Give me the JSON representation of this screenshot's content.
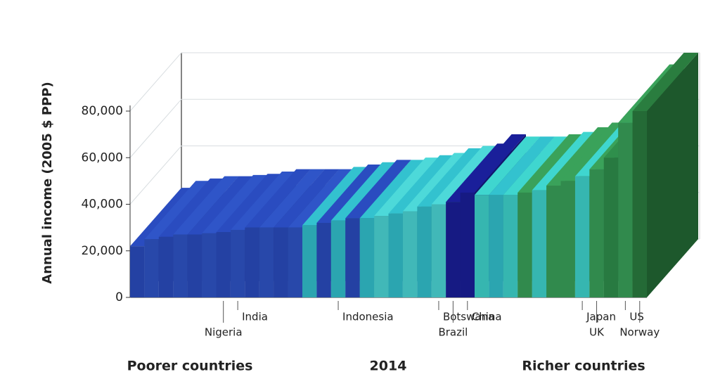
{
  "chart_data": {
    "type": "bar3d",
    "y_label": "Annual income (2005 $ PPP)",
    "categories": [
      null,
      null,
      null,
      null,
      null,
      null,
      "Nigeria",
      "India",
      null,
      null,
      null,
      null,
      null,
      null,
      "Indonesia",
      null,
      null,
      null,
      null,
      null,
      null,
      "Botswana",
      "Brazil",
      "China",
      null,
      null,
      null,
      null,
      null,
      null,
      null,
      "Japan",
      "UK",
      null,
      "US",
      "Norway"
    ],
    "values": [
      22000,
      25000,
      26000,
      27000,
      27000,
      27500,
      28000,
      29000,
      30000,
      30000,
      30000,
      30000,
      31000,
      32000,
      33000,
      34000,
      34000,
      35000,
      36000,
      37000,
      39000,
      40000,
      41000,
      45000,
      44000,
      44000,
      44000,
      45000,
      46000,
      48000,
      50000,
      52000,
      55000,
      60000,
      75000,
      80000
    ],
    "colors": [
      "#2a4cc0",
      "#2f55c8",
      "#2a4cc0",
      "#2f55c8",
      "#2a4cc0",
      "#2f55c8",
      "#2a4cc0",
      "#2f55c8",
      "#2a4cc0",
      "#2f55c8",
      "#2a4cc0",
      "#2f55c8",
      "#33c2cf",
      "#2a4cc0",
      "#33c2cf",
      "#2a4cc0",
      "#33c2cf",
      "#4dd9d9",
      "#33c2cf",
      "#4dd9d9",
      "#33c2cf",
      "#4dd9d9",
      "#1a1f9a",
      "#1a1f9a",
      "#3fd6cf",
      "#33c2cf",
      "#3fd6cf",
      "#3aa25a",
      "#3fd6cf",
      "#3aa25a",
      "#3aa25a",
      "#3fd6cf",
      "#3aa25a",
      "#2f8f4c",
      "#3aa25a",
      "#2a7d3f"
    ],
    "ylim": [
      0,
      80000
    ],
    "yticks": [
      0,
      {
        "value": 20000,
        "label": "20,000"
      },
      {
        "value": 40000,
        "label": "40,000"
      },
      {
        "value": 60000,
        "label": "60,000"
      },
      {
        "value": 80000,
        "label": "80,000"
      }
    ],
    "grid": true,
    "footer_labels": [
      "Poorer countries",
      "2014",
      "Richer countries"
    ]
  }
}
